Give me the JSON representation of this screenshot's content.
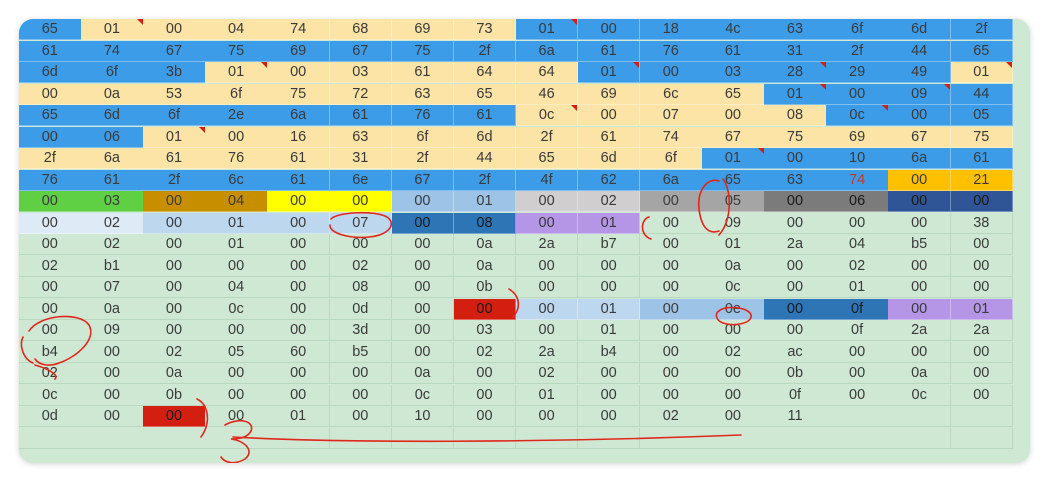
{
  "sheet": {
    "colors": {
      "Y": "#fbe4a6",
      "B": "#3d9ce8",
      "N": "#cfe8d4",
      "G": "#5fcf44",
      "O": "#c78f00",
      "YB": "#ffff00",
      "LB": "#9dc3e6",
      "LG": "#d0cece",
      "G2": "#a5a5a5",
      "DG": "#7b7b7b",
      "NB": "#2f5597",
      "VL": "#deebf7",
      "MB": "#bdd7ee",
      "SB": "#2e75b6",
      "PU": "#b595e6",
      "RD": "#d21f0f",
      "AM": "#ffc000"
    },
    "rows": [
      {
        "cells": [
          "65",
          "01",
          "00",
          "04",
          "74",
          "68",
          "69",
          "73",
          "01",
          "00",
          "18",
          "4c",
          "63",
          "6f",
          "6d",
          "2f"
        ],
        "fills": [
          "B",
          "Y",
          "Y",
          "Y",
          "Y",
          "Y",
          "Y",
          "Y",
          "B",
          "B",
          "B",
          "B",
          "B",
          "B",
          "B",
          "B"
        ]
      },
      {
        "cells": [
          "61",
          "74",
          "67",
          "75",
          "69",
          "67",
          "75",
          "2f",
          "6a",
          "61",
          "76",
          "61",
          "31",
          "2f",
          "44",
          "65"
        ],
        "fills": [
          "B",
          "B",
          "B",
          "B",
          "B",
          "B",
          "B",
          "B",
          "B",
          "B",
          "B",
          "B",
          "B",
          "B",
          "B",
          "B"
        ]
      },
      {
        "cells": [
          "6d",
          "6f",
          "3b",
          "01",
          "00",
          "03",
          "61",
          "64",
          "64",
          "01",
          "00",
          "03",
          "28",
          "29",
          "49",
          "01"
        ],
        "fills": [
          "B",
          "B",
          "B",
          "Y",
          "Y",
          "Y",
          "Y",
          "Y",
          "Y",
          "B",
          "B",
          "B",
          "B",
          "B",
          "B",
          "Y"
        ]
      },
      {
        "cells": [
          "00",
          "0a",
          "53",
          "6f",
          "75",
          "72",
          "63",
          "65",
          "46",
          "69",
          "6c",
          "65",
          "01",
          "00",
          "09",
          "44"
        ],
        "fills": [
          "Y",
          "Y",
          "Y",
          "Y",
          "Y",
          "Y",
          "Y",
          "Y",
          "Y",
          "Y",
          "Y",
          "Y",
          "B",
          "B",
          "B",
          "B"
        ]
      },
      {
        "cells": [
          "65",
          "6d",
          "6f",
          "2e",
          "6a",
          "61",
          "76",
          "61",
          "0c",
          "00",
          "07",
          "00",
          "08",
          "0c",
          "00",
          "05"
        ],
        "fills": [
          "B",
          "B",
          "B",
          "B",
          "B",
          "B",
          "B",
          "B",
          "Y",
          "Y",
          "Y",
          "Y",
          "Y",
          "B",
          "B",
          "B"
        ]
      },
      {
        "cells": [
          "00",
          "06",
          "01",
          "00",
          "16",
          "63",
          "6f",
          "6d",
          "2f",
          "61",
          "74",
          "67",
          "75",
          "69",
          "67",
          "75"
        ],
        "fills": [
          "B",
          "B",
          "Y",
          "Y",
          "Y",
          "Y",
          "Y",
          "Y",
          "Y",
          "Y",
          "Y",
          "Y",
          "Y",
          "Y",
          "Y",
          "Y"
        ]
      },
      {
        "cells": [
          "2f",
          "6a",
          "61",
          "76",
          "61",
          "31",
          "2f",
          "44",
          "65",
          "6d",
          "6f",
          "01",
          "00",
          "10",
          "6a",
          "61"
        ],
        "fills": [
          "Y",
          "Y",
          "Y",
          "Y",
          "Y",
          "Y",
          "Y",
          "Y",
          "Y",
          "Y",
          "Y",
          "B",
          "B",
          "B",
          "B",
          "B"
        ]
      },
      {
        "cells": [
          "76",
          "61",
          "2f",
          "6c",
          "61",
          "6e",
          "67",
          "2f",
          "4f",
          "62",
          "6a",
          "65",
          "63",
          "74",
          "00",
          "21"
        ],
        "fills": [
          "B",
          "B",
          "B",
          "B",
          "B",
          "B",
          "B",
          "B",
          "B",
          "B",
          "B",
          "B",
          "B",
          "B",
          "AM",
          "AM"
        ]
      },
      {
        "cells": [
          "00",
          "03",
          "00",
          "04",
          "00",
          "00",
          "00",
          "01",
          "00",
          "02",
          "00",
          "05",
          "00",
          "06",
          "00",
          "00"
        ],
        "fills": [
          "G",
          "G",
          "O",
          "O",
          "YB",
          "YB",
          "LB",
          "LB",
          "LG",
          "LG",
          "G2",
          "G2",
          "DG",
          "DG",
          "NB",
          "NB"
        ]
      },
      {
        "cells": [
          "00",
          "02",
          "00",
          "01",
          "00",
          "07",
          "00",
          "08",
          "00",
          "01",
          "00",
          "09",
          "00",
          "00",
          "00",
          "38"
        ],
        "fills": [
          "VL",
          "VL",
          "MB",
          "MB",
          "MB",
          "MB",
          "SB",
          "SB",
          "PU",
          "PU",
          "N",
          "N",
          "N",
          "N",
          "N",
          "N"
        ]
      },
      {
        "cells": [
          "00",
          "02",
          "00",
          "01",
          "00",
          "00",
          "00",
          "0a",
          "2a",
          "b7",
          "00",
          "01",
          "2a",
          "04",
          "b5",
          "00"
        ],
        "fills": [
          "N",
          "N",
          "N",
          "N",
          "N",
          "N",
          "N",
          "N",
          "N",
          "N",
          "N",
          "N",
          "N",
          "N",
          "N",
          "N"
        ]
      },
      {
        "cells": [
          "02",
          "b1",
          "00",
          "00",
          "00",
          "02",
          "00",
          "0a",
          "00",
          "00",
          "00",
          "0a",
          "00",
          "02",
          "00",
          "00"
        ],
        "fills": [
          "N",
          "N",
          "N",
          "N",
          "N",
          "N",
          "N",
          "N",
          "N",
          "N",
          "N",
          "N",
          "N",
          "N",
          "N",
          "N"
        ]
      },
      {
        "cells": [
          "00",
          "07",
          "00",
          "04",
          "00",
          "08",
          "00",
          "0b",
          "00",
          "00",
          "00",
          "0c",
          "00",
          "01",
          "00",
          "00"
        ],
        "fills": [
          "N",
          "N",
          "N",
          "N",
          "N",
          "N",
          "N",
          "N",
          "N",
          "N",
          "N",
          "N",
          "N",
          "N",
          "N",
          "N"
        ]
      },
      {
        "cells": [
          "00",
          "0a",
          "00",
          "0c",
          "00",
          "0d",
          "00",
          "00",
          "00",
          "01",
          "00",
          "0e",
          "00",
          "0f",
          "00",
          "01"
        ],
        "fills": [
          "N",
          "N",
          "N",
          "N",
          "N",
          "N",
          "N",
          "RD",
          "MB",
          "MB",
          "LB",
          "LB",
          "SB",
          "SB",
          "PU",
          "PU"
        ]
      },
      {
        "cells": [
          "00",
          "09",
          "00",
          "00",
          "00",
          "3d",
          "00",
          "03",
          "00",
          "01",
          "00",
          "00",
          "00",
          "0f",
          "2a",
          "2a"
        ],
        "fills": [
          "N",
          "N",
          "N",
          "N",
          "N",
          "N",
          "N",
          "N",
          "N",
          "N",
          "N",
          "N",
          "N",
          "N",
          "N",
          "N"
        ]
      },
      {
        "cells": [
          "b4",
          "00",
          "02",
          "05",
          "60",
          "b5",
          "00",
          "02",
          "2a",
          "b4",
          "00",
          "02",
          "ac",
          "00",
          "00",
          "00"
        ],
        "fills": [
          "N",
          "N",
          "N",
          "N",
          "N",
          "N",
          "N",
          "N",
          "N",
          "N",
          "N",
          "N",
          "N",
          "N",
          "N",
          "N"
        ]
      },
      {
        "cells": [
          "02",
          "00",
          "0a",
          "00",
          "00",
          "00",
          "0a",
          "00",
          "02",
          "00",
          "00",
          "00",
          "0b",
          "00",
          "0a",
          "00"
        ],
        "fills": [
          "N",
          "N",
          "N",
          "N",
          "N",
          "N",
          "N",
          "N",
          "N",
          "N",
          "N",
          "N",
          "N",
          "N",
          "N",
          "N"
        ]
      },
      {
        "cells": [
          "0c",
          "00",
          "0b",
          "00",
          "00",
          "00",
          "0c",
          "00",
          "01",
          "00",
          "00",
          "00",
          "0f",
          "00",
          "0c",
          "00"
        ],
        "fills": [
          "N",
          "N",
          "N",
          "N",
          "N",
          "N",
          "N",
          "N",
          "N",
          "N",
          "N",
          "N",
          "N",
          "N",
          "N",
          "N"
        ]
      },
      {
        "cells": [
          "0d",
          "00",
          "00",
          "00",
          "01",
          "00",
          "10",
          "00",
          "00",
          "00",
          "02",
          "00",
          "11",
          "",
          "",
          ""
        ],
        "fills": [
          "N",
          "N",
          "RD",
          "N",
          "N",
          "N",
          "N",
          "N",
          "N",
          "N",
          "N",
          "N",
          "N",
          "N",
          "N",
          "N"
        ]
      },
      {
        "cells": [
          "",
          "",
          "",
          "",
          "",
          "",
          "",
          "",
          "",
          "",
          "",
          "",
          "",
          "",
          "",
          ""
        ],
        "fills": [
          "N",
          "N",
          "N",
          "N",
          "N",
          "N",
          "N",
          "N",
          "N",
          "N",
          "N",
          "N",
          "N",
          "N",
          "N",
          "N"
        ]
      }
    ],
    "comment_flags": [
      [
        0,
        1
      ],
      [
        0,
        8
      ],
      [
        2,
        3
      ],
      [
        2,
        9
      ],
      [
        2,
        12
      ],
      [
        2,
        15
      ],
      [
        3,
        12
      ],
      [
        3,
        14
      ],
      [
        4,
        8
      ],
      [
        4,
        13
      ],
      [
        5,
        2
      ],
      [
        6,
        11
      ]
    ],
    "red_text_cells": [
      [
        7,
        13
      ]
    ]
  }
}
